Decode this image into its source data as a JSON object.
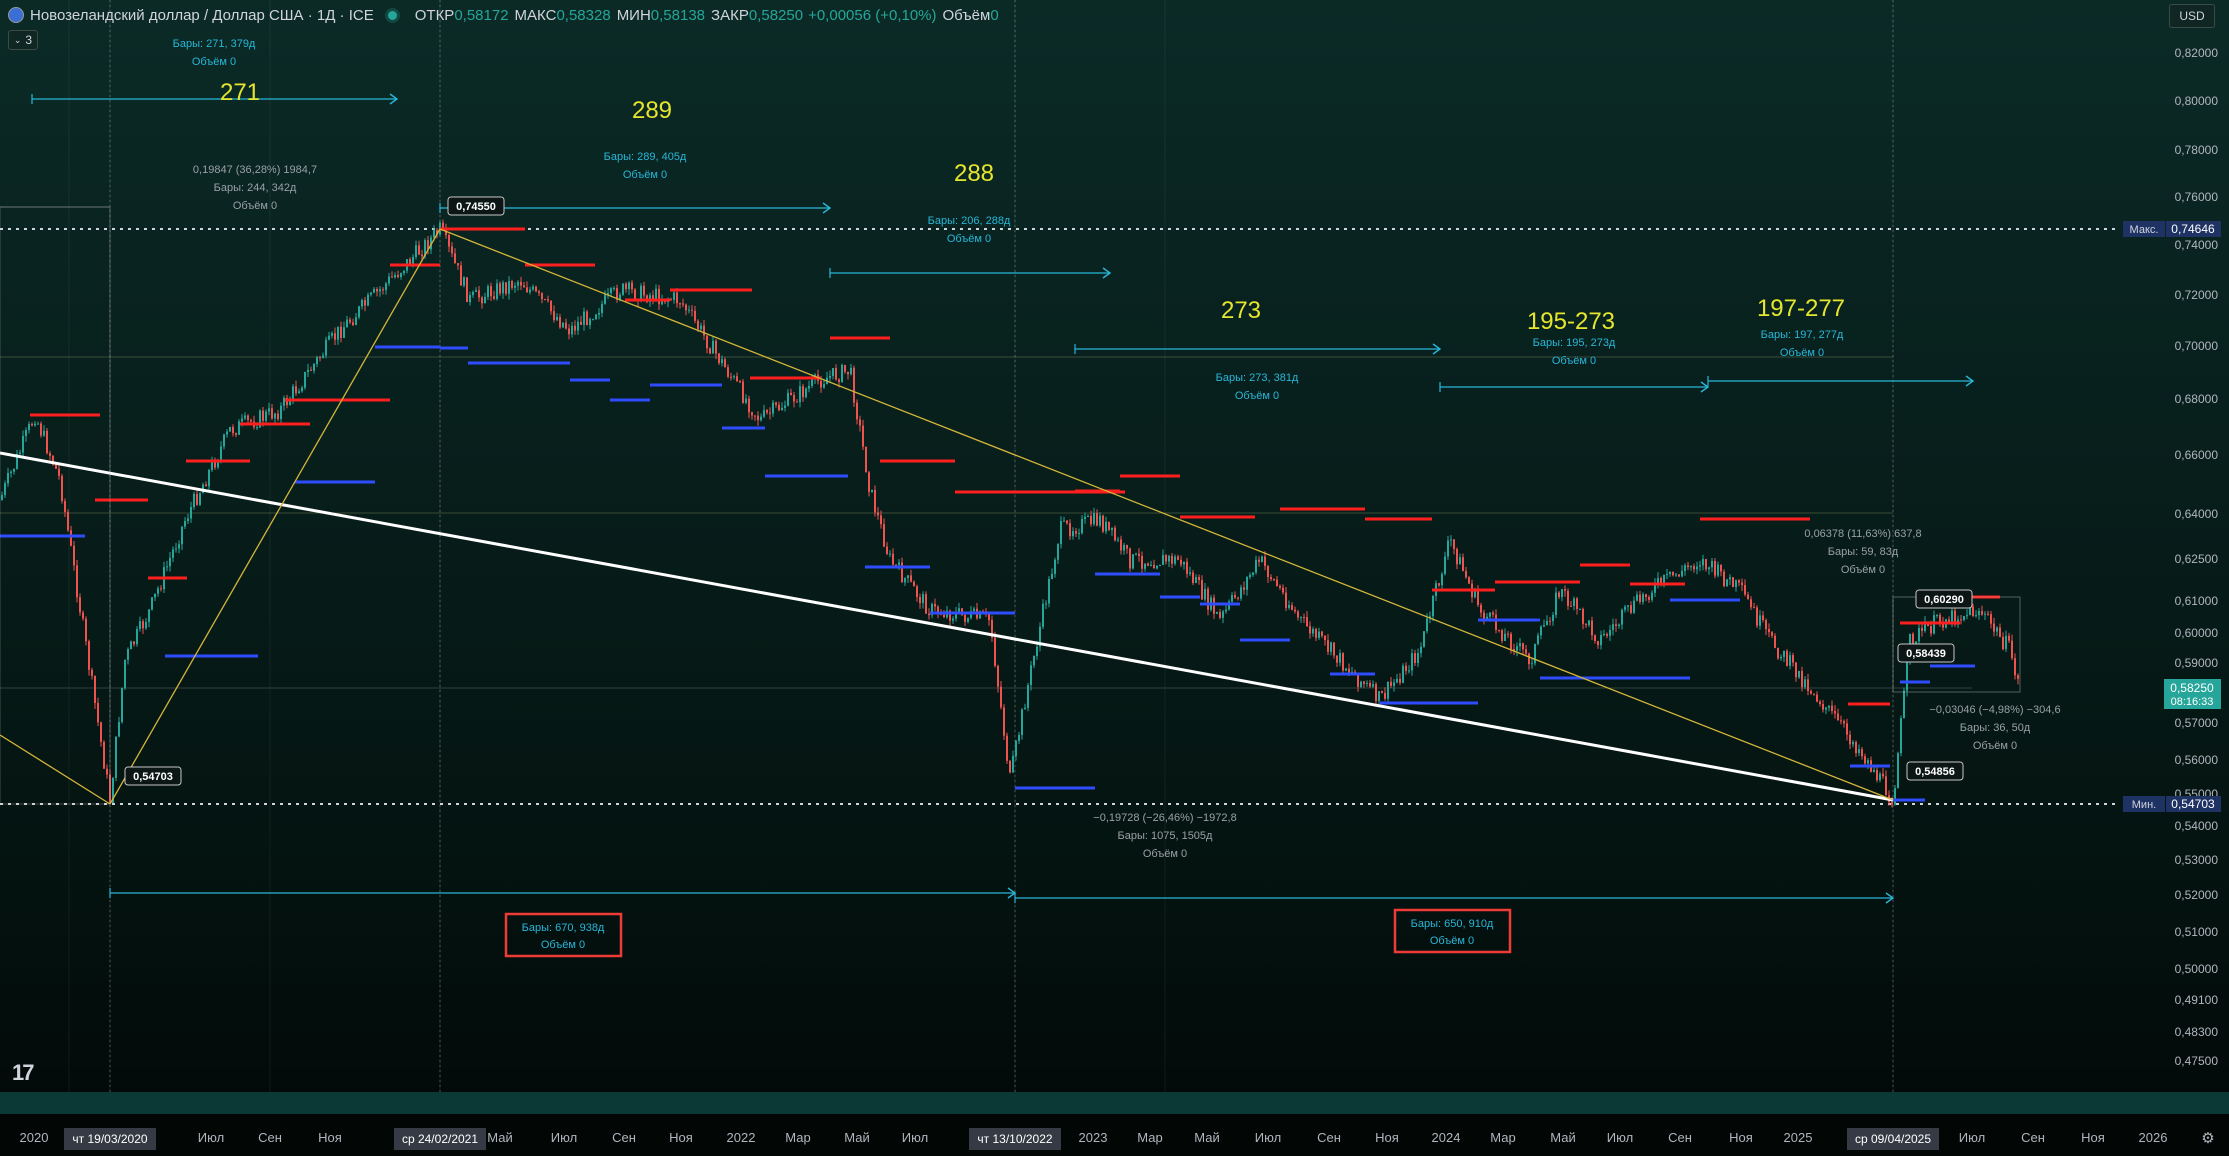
{
  "legend": {
    "symbol": "Новозеландский доллар / Доллар США · 1Д · ICE",
    "open_label": "ОТКР",
    "open": "0,58172",
    "high_label": "МАКС",
    "high": "0,58328",
    "low_label": "МИН",
    "low": "0,58138",
    "close_label": "ЗАКР",
    "close": "0,58250",
    "change": "+0,00056 (+0,10%)",
    "volume_label": "Объём",
    "volume": "0"
  },
  "indicator_count": "3",
  "currency": "USD",
  "price_axis": {
    "ticks": [
      "0,82000",
      "0,80000",
      "0,78000",
      "0,76000",
      "0,74000",
      "0,72000",
      "0,70000",
      "0,68000",
      "0,66000",
      "0,64000",
      "0,62500",
      "0,61000",
      "0,60000",
      "0,59000",
      "0,57000",
      "0,56000",
      "0,55000",
      "0,54000",
      "0,53000",
      "0,52000",
      "0,51000",
      "0,50000",
      "0,49100",
      "0,48300",
      "0,47500"
    ],
    "tick_values": [
      0.82,
      0.8,
      0.78,
      0.76,
      0.74,
      0.72,
      0.7,
      0.68,
      0.66,
      0.64,
      0.625,
      0.61,
      0.6,
      0.59,
      0.57,
      0.56,
      0.55,
      0.54,
      0.53,
      0.52,
      0.51,
      0.5,
      0.491,
      0.483,
      0.475
    ],
    "max_label": "Макс.",
    "max_value": "0,74646",
    "min_label": "Мин.",
    "min_value": "0,54703",
    "last_price": "0,58250",
    "countdown": "08:16:33"
  },
  "time_axis": {
    "labels": [
      "2020",
      "Июл",
      "Сен",
      "Ноя",
      "Май",
      "Июл",
      "Сен",
      "Ноя",
      "2022",
      "Мар",
      "Май",
      "Июл",
      "2023",
      "Мар",
      "Май",
      "Июл",
      "Сен",
      "Ноя",
      "2024",
      "Мар",
      "Май",
      "Июл",
      "Сен",
      "Ноя",
      "2025",
      "Июл",
      "Сен",
      "Ноя",
      "2026"
    ],
    "highlights": [
      "чт 19/03/2020",
      "ср 24/02/2021",
      "чт 13/10/2022",
      "ср 09/04/2025"
    ]
  },
  "cycle_labels": [
    "271",
    "289",
    "288",
    "273",
    "195-273",
    "197-277"
  ],
  "measurements": [
    {
      "line1": "Бары: 271, 379д",
      "line2": "Объём 0"
    },
    {
      "line1": "Бары: 289, 405д",
      "line2": "Объём 0"
    },
    {
      "line1": "Бары: 206, 288д",
      "line2": "Объём 0"
    },
    {
      "line1": "Бары: 273, 381д",
      "line2": "Объём 0"
    },
    {
      "line1": "Бары: 195, 273д",
      "line2": "Объём 0"
    },
    {
      "line1": "Бары: 197, 277д",
      "line2": "Объём 0"
    }
  ],
  "range_measures": [
    {
      "line1": "0,19847 (36,28%) 1984,7",
      "line2": "Бары: 244, 342д",
      "line3": "Объём 0"
    },
    {
      "line1": "−0,19728 (−26,46%) −1972,8",
      "line2": "Бары: 1075, 1505д",
      "line3": "Объём 0"
    },
    {
      "line1": "0,06378 (11,63%) 637,8",
      "line2": "Бары: 59, 83д",
      "line3": "Объём 0"
    },
    {
      "line1": "−0,03046 (−4,98%) −304,6",
      "line2": "Бары: 36, 50д",
      "line3": "Объём 0"
    }
  ],
  "boxed_measures": [
    {
      "line1": "Бары: 670, 938д",
      "line2": "Объём 0"
    },
    {
      "line1": "Бары: 650, 910д",
      "line2": "Объём 0"
    }
  ],
  "price_callouts": [
    "0,74550",
    "0,54703",
    "0,60290",
    "0,58439",
    "0,54856"
  ],
  "colors": {
    "up": "#26a69a",
    "down": "#ef5350",
    "resistance": "#ff1f1f",
    "support": "#2f4dff",
    "trendline": "#ffffff",
    "fan": "#d4b53a",
    "cycle_text": "#e6e62e",
    "measure": "#29b6d8",
    "box": "#ef3b36",
    "max_tag": "#1e3264"
  }
}
